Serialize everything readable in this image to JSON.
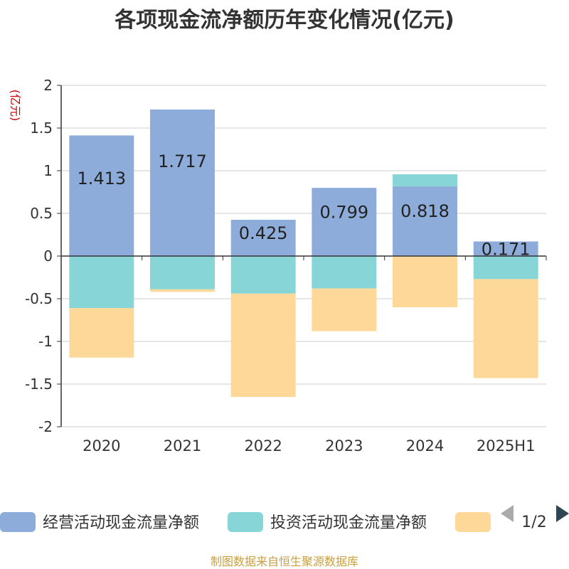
{
  "chart_data": {
    "type": "bar",
    "stacked": true,
    "title": "各项现金流净额历年变化情况(亿元)",
    "unit_label": "(亿元)",
    "categories": [
      "2020",
      "2021",
      "2022",
      "2023",
      "2024",
      "2025H1"
    ],
    "ylim": [
      -2,
      2
    ],
    "yticks": [
      2,
      1.5,
      1,
      0.5,
      0,
      -0.5,
      -1,
      -1.5,
      -2
    ],
    "grid": true,
    "series": [
      {
        "name": "经营活动现金流量净额",
        "color": "#8eacd9",
        "values": [
          1.413,
          1.717,
          0.425,
          0.799,
          0.818,
          0.171
        ],
        "labels": [
          "1.413",
          "1.717",
          "0.425",
          "0.799",
          "0.818",
          "0.171"
        ]
      },
      {
        "name": "投资活动现金流量净额",
        "color": "#87d5d6",
        "values": [
          -0.61,
          -0.39,
          -0.44,
          -0.38,
          0.14,
          -0.27
        ]
      },
      {
        "name": "",
        "color": "#fed899",
        "values": [
          -0.58,
          -0.03,
          -1.21,
          -0.5,
          -0.6,
          -1.16
        ]
      }
    ],
    "legend": {
      "position": "bottom",
      "page": "1/2"
    },
    "source": "制图数据来自恒生聚源数据库"
  }
}
